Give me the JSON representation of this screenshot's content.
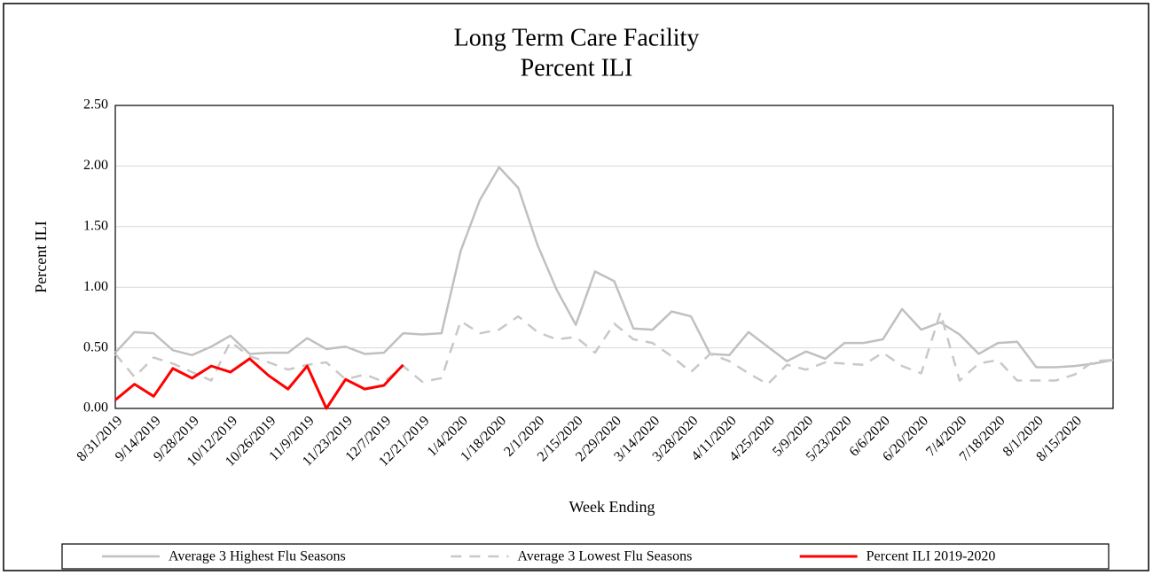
{
  "chart_data": {
    "type": "line",
    "title": [
      "Long Term Care Facility",
      "Percent ILI"
    ],
    "x_label": "Week Ending",
    "y_label": "Percent ILI",
    "categories": [
      "8/31/2019",
      null,
      "9/14/2019",
      null,
      "9/28/2019",
      null,
      "10/12/2019",
      null,
      "10/26/2019",
      null,
      "11/9/2019",
      null,
      "11/23/2019",
      null,
      "12/7/2019",
      null,
      "12/21/2019",
      null,
      "1/4/2020",
      null,
      "1/18/2020",
      null,
      "2/1/2020",
      null,
      "2/15/2020",
      null,
      "2/29/2020",
      null,
      "3/14/2020",
      null,
      "3/28/2020",
      null,
      "4/11/2020",
      null,
      "4/25/2020",
      null,
      "5/9/2020",
      null,
      "5/23/2020",
      null,
      "6/6/2020",
      null,
      "6/20/2020",
      null,
      "7/4/2020",
      null,
      "7/18/2020",
      null,
      "8/1/2020",
      null,
      "8/15/2020",
      null,
      null
    ],
    "series": [
      {
        "name": "Average 3 Highest Flu Seasons",
        "color": "#c0c0c0",
        "line_style": "solid",
        "values": [
          0.46,
          0.63,
          0.62,
          0.48,
          0.44,
          0.51,
          0.6,
          0.45,
          0.46,
          0.46,
          0.58,
          0.49,
          0.51,
          0.45,
          0.46,
          0.62,
          0.61,
          0.62,
          1.3,
          1.72,
          1.99,
          1.82,
          1.35,
          0.98,
          0.69,
          1.13,
          1.05,
          0.66,
          0.65,
          0.8,
          0.76,
          0.45,
          0.44,
          0.63,
          0.51,
          0.39,
          0.47,
          0.41,
          0.54,
          0.54,
          0.57,
          0.82,
          0.65,
          0.71,
          0.61,
          0.45,
          0.54,
          0.55,
          0.34,
          0.34,
          0.35,
          0.37,
          0.4
        ]
      },
      {
        "name": "Average 3 Lowest Flu Seasons",
        "color": "#c8c8c8",
        "line_style": "dashed",
        "values": [
          0.45,
          0.26,
          0.42,
          0.37,
          0.3,
          0.23,
          0.55,
          0.43,
          0.38,
          0.32,
          0.36,
          0.38,
          0.24,
          0.28,
          0.22,
          0.35,
          0.22,
          0.25,
          0.72,
          0.62,
          0.65,
          0.76,
          0.63,
          0.57,
          0.59,
          0.46,
          0.7,
          0.57,
          0.54,
          0.43,
          0.3,
          0.45,
          0.39,
          0.29,
          0.2,
          0.36,
          0.32,
          0.38,
          0.37,
          0.36,
          0.46,
          0.35,
          0.29,
          0.79,
          0.23,
          0.37,
          0.4,
          0.23,
          0.23,
          0.23,
          0.28,
          0.39,
          0.4
        ]
      },
      {
        "name": "Percent ILI 2019-2020",
        "color": "#ff0000",
        "line_style": "solid",
        "values": [
          0.07,
          0.2,
          0.1,
          0.33,
          0.25,
          0.35,
          0.3,
          0.41,
          0.27,
          0.16,
          0.35,
          0.0,
          0.24,
          0.16,
          0.19,
          0.36,
          null,
          null,
          null,
          null,
          null,
          null,
          null,
          null,
          null,
          null,
          null,
          null,
          null,
          null,
          null,
          null,
          null,
          null,
          null,
          null,
          null,
          null,
          null,
          null,
          null,
          null,
          null,
          null,
          null,
          null,
          null,
          null,
          null,
          null,
          null,
          null,
          null
        ]
      }
    ],
    "ylim": [
      0,
      2.5
    ],
    "yticks": [
      {
        "value": 0,
        "label": "0.00"
      },
      {
        "value": 0.5,
        "label": "0.50"
      },
      {
        "value": 1,
        "label": "1.00"
      },
      {
        "value": 1.5,
        "label": "1.50"
      },
      {
        "value": 2,
        "label": "2.00"
      },
      {
        "value": 2.5,
        "label": "2.50"
      }
    ],
    "grid": true,
    "legend": "bottom"
  }
}
